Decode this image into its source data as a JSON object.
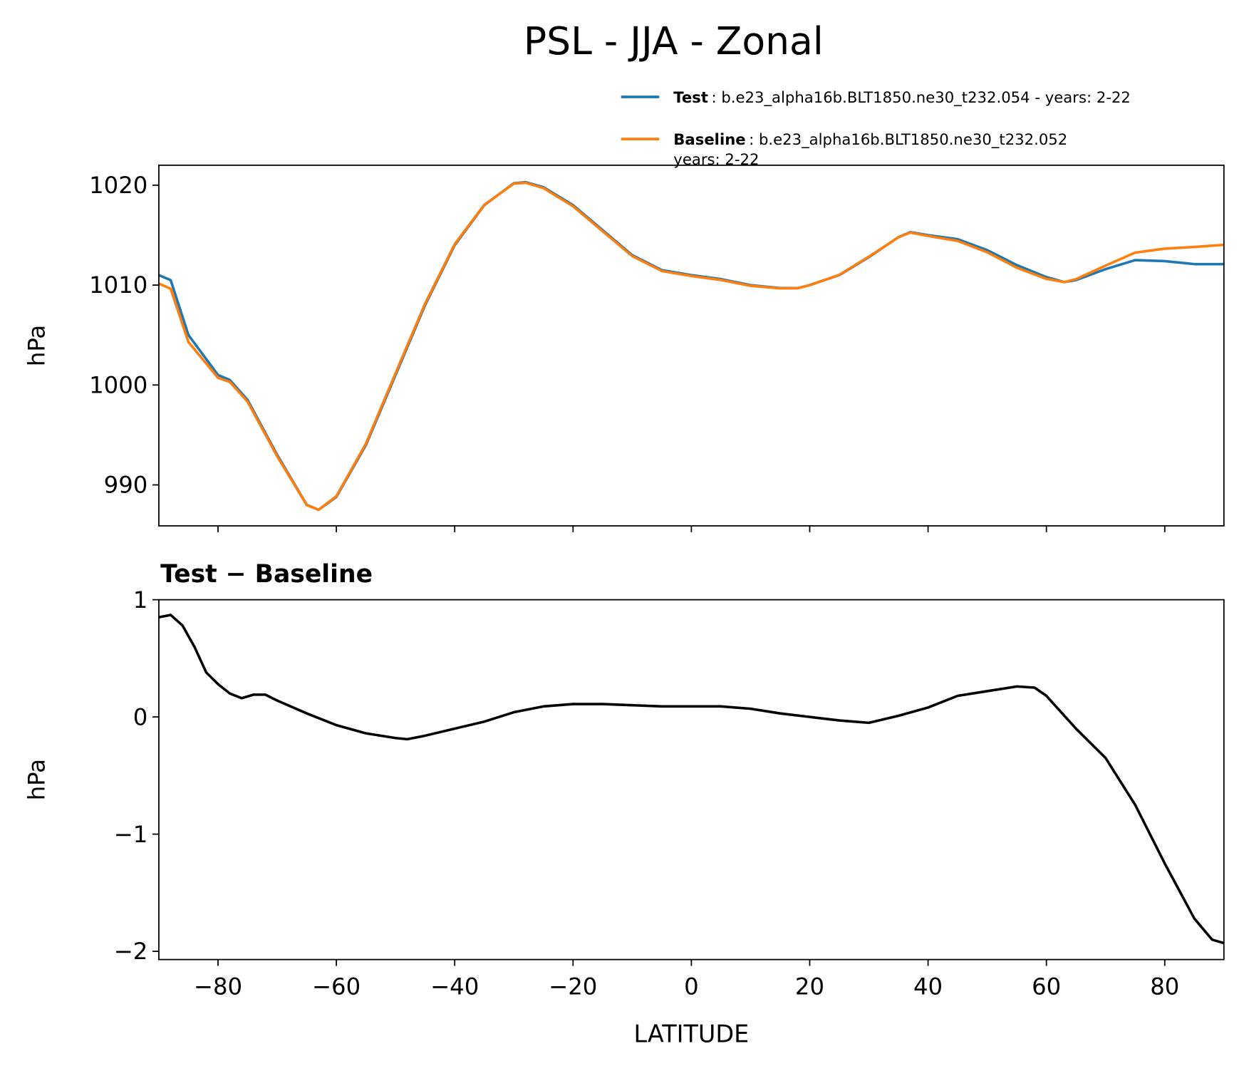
{
  "chart_data": [
    {
      "type": "line",
      "title": "PSL - JJA - Zonal",
      "ylabel": "hPa",
      "x": [
        -90,
        -88,
        -85,
        -80,
        -78,
        -75,
        -70,
        -65,
        -63,
        -60,
        -55,
        -50,
        -45,
        -40,
        -35,
        -30,
        -28,
        -25,
        -20,
        -15,
        -10,
        -5,
        0,
        5,
        10,
        15,
        18,
        20,
        25,
        30,
        35,
        37,
        40,
        45,
        50,
        55,
        60,
        63,
        65,
        70,
        75,
        80,
        85,
        90
      ],
      "series": [
        {
          "name": "Test",
          "label_lines": [
            ": b.e23_alpha16b.BLT1850.ne30_t232.054 - years: 2-22"
          ],
          "color": "#1f77b4",
          "values": [
            1011,
            1010.5,
            1005,
            1001,
            1000.5,
            998.5,
            993,
            988,
            987.5,
            988.8,
            994,
            1001,
            1008,
            1014,
            1018,
            1020.2,
            1020.3,
            1019.8,
            1018,
            1015.5,
            1013,
            1011.5,
            1011,
            1010.6,
            1010,
            1009.7,
            1009.7,
            1010,
            1011,
            1012.8,
            1014.8,
            1015.3,
            1015,
            1014.6,
            1013.5,
            1012,
            1010.8,
            1010.3,
            1010.5,
            1011.6,
            1012.5,
            1012.4,
            1012.1,
            1012.1
          ]
        },
        {
          "name": "Baseline",
          "label_lines": [
            ": b.e23_alpha16b.BLT1850.ne30_t232.052",
            "years: 2-22"
          ],
          "color": "#ff7f0e",
          "values": [
            1010.15,
            1009.63,
            1004.3,
            1000.72,
            1000.3,
            998.32,
            992.86,
            987.97,
            987.51,
            988.87,
            994.14,
            1001.18,
            1008.16,
            1014.1,
            1018.04,
            1020.16,
            1020.24,
            1019.71,
            1017.89,
            1015.39,
            1012.9,
            1011.41,
            1010.91,
            1010.51,
            1009.93,
            1009.67,
            1009.69,
            1010,
            1011.03,
            1012.85,
            1014.79,
            1015.26,
            1014.92,
            1014.42,
            1013.28,
            1011.74,
            1010.62,
            1010.3,
            1010.6,
            1011.95,
            1013.25,
            1013.65,
            1013.82,
            1014.03
          ]
        }
      ],
      "xlim": [
        -90,
        90
      ],
      "xticks": [
        -80,
        -60,
        -40,
        -20,
        0,
        20,
        40,
        60,
        80
      ],
      "ylim": [
        985.9,
        1022
      ],
      "yticks": [
        990,
        1000,
        1010,
        1020
      ]
    },
    {
      "type": "line",
      "title": "Test − Baseline",
      "ylabel": "hPa",
      "xlabel": "LATITUDE",
      "color": "#000000",
      "x": [
        -90,
        -88,
        -86,
        -84,
        -82,
        -80,
        -78,
        -76,
        -74,
        -72,
        -70,
        -65,
        -60,
        -55,
        -50,
        -48,
        -45,
        -40,
        -35,
        -30,
        -25,
        -20,
        -15,
        -10,
        -5,
        0,
        5,
        10,
        15,
        20,
        25,
        30,
        35,
        40,
        45,
        50,
        55,
        58,
        60,
        65,
        70,
        75,
        80,
        85,
        88,
        90
      ],
      "values": [
        0.85,
        0.87,
        0.78,
        0.6,
        0.38,
        0.28,
        0.2,
        0.16,
        0.19,
        0.19,
        0.14,
        0.03,
        -0.07,
        -0.14,
        -0.18,
        -0.19,
        -0.16,
        -0.1,
        -0.04,
        0.04,
        0.09,
        0.11,
        0.11,
        0.1,
        0.09,
        0.09,
        0.09,
        0.07,
        0.03,
        0,
        -0.03,
        -0.05,
        0.01,
        0.08,
        0.18,
        0.22,
        0.26,
        0.25,
        0.18,
        -0.1,
        -0.35,
        -0.75,
        -1.25,
        -1.72,
        -1.9,
        -1.93
      ],
      "xlim": [
        -90,
        90
      ],
      "xticks": [
        {
          "value": -80,
          "label": "−80"
        },
        {
          "value": -60,
          "label": "−60"
        },
        {
          "value": -40,
          "label": "−40"
        },
        {
          "value": -20,
          "label": "−20"
        },
        0,
        20,
        40,
        60,
        80
      ],
      "ylim": [
        -2.07,
        1.0
      ],
      "yticks": [
        {
          "value": -2,
          "label": "−2"
        },
        {
          "value": -1,
          "label": "−1"
        },
        0,
        1
      ]
    }
  ]
}
